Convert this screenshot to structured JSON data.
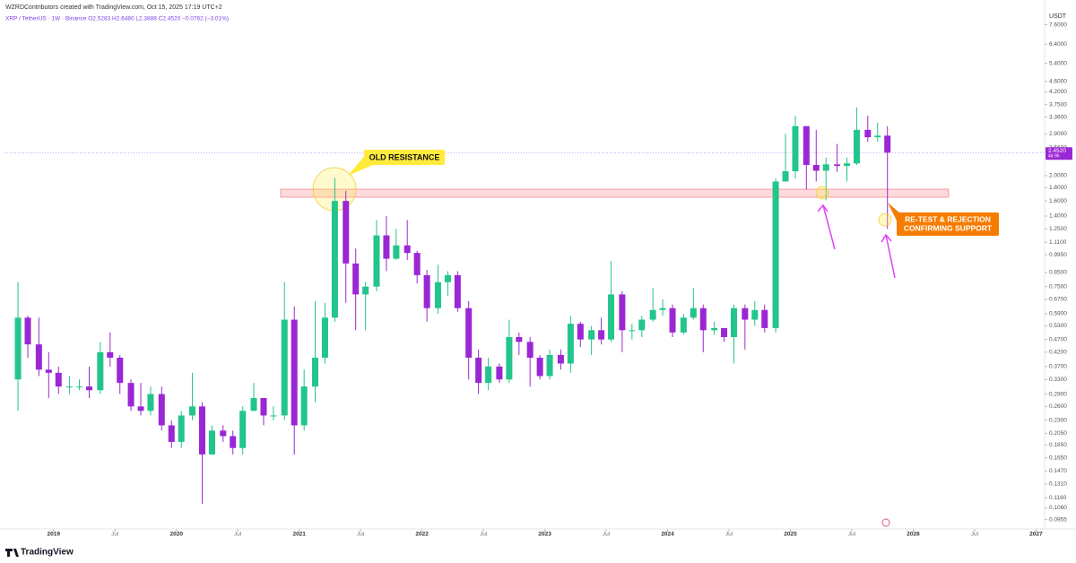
{
  "chart_data": {
    "type": "candlestick",
    "header": "WZRDContributors created with TradingView.com, Oct 15, 2025 17:19 UTC+2",
    "legend_text": "XRP / TetherUS · 1W · Binance  O2.5283  H2.6480  L2.3888  C2.4520  −0.0762 (−3.01%)",
    "currency": "USDT",
    "logo": "TradingView",
    "annotation_1": "OLD RESISTANCE",
    "annotation_2": [
      "RE-TEST & REJECTION",
      "CONFIRMING SUPPORT"
    ],
    "last_price": {
      "value": 2.452,
      "label": "2.4520"
    },
    "countdown": "4d 9h",
    "log_scale": true,
    "up_color": "#22c58b",
    "down_color": "#9b27d4",
    "xlim": [
      2018.6,
      2027.07
    ],
    "xticks": [
      {
        "value": 2019,
        "label": "2019"
      },
      {
        "value": 2019.5,
        "label": "Jul"
      },
      {
        "value": 2020,
        "label": "2020"
      },
      {
        "value": 2020.5,
        "label": "Jul"
      },
      {
        "value": 2021,
        "label": "2021"
      },
      {
        "value": 2021.5,
        "label": "Jul"
      },
      {
        "value": 2022,
        "label": "2022"
      },
      {
        "value": 2022.5,
        "label": "Jul"
      },
      {
        "value": 2023,
        "label": "2023"
      },
      {
        "value": 2023.5,
        "label": "Jul"
      },
      {
        "value": 2024,
        "label": "2024"
      },
      {
        "value": 2024.5,
        "label": "Jul"
      },
      {
        "value": 2025,
        "label": "2025"
      },
      {
        "value": 2025.5,
        "label": "Jul"
      },
      {
        "value": 2026,
        "label": "2026"
      },
      {
        "value": 2026.5,
        "label": "Jul"
      },
      {
        "value": 2027,
        "label": "2027"
      }
    ],
    "ylim": [
      0.088,
      8.2
    ],
    "yticks": [
      {
        "value": 7.6,
        "label": "7.6000"
      },
      {
        "value": 6.4,
        "label": "6.4000"
      },
      {
        "value": 5.4,
        "label": "5.4000"
      },
      {
        "value": 4.6,
        "label": "4.6000"
      },
      {
        "value": 4.2,
        "label": "4.2000"
      },
      {
        "value": 3.75,
        "label": "3.7500"
      },
      {
        "value": 3.36,
        "label": "3.3600"
      },
      {
        "value": 2.9,
        "label": "2.9000"
      },
      {
        "value": 2.56,
        "label": "2.5600"
      },
      {
        "value": 2,
        "label": "2.0000"
      },
      {
        "value": 1.8,
        "label": "1.8000"
      },
      {
        "value": 1.6,
        "label": "1.6000"
      },
      {
        "value": 1.4,
        "label": "1.4000"
      },
      {
        "value": 1.25,
        "label": "1.2500"
      },
      {
        "value": 1.11,
        "label": "1.1100"
      },
      {
        "value": 0.995,
        "label": "0.9950"
      },
      {
        "value": 0.85,
        "label": "0.8500"
      },
      {
        "value": 0.75,
        "label": "0.7500"
      },
      {
        "value": 0.67,
        "label": "0.6700"
      },
      {
        "value": 0.59,
        "label": "0.5900"
      },
      {
        "value": 0.53,
        "label": "0.5300"
      },
      {
        "value": 0.47,
        "label": "0.4700"
      },
      {
        "value": 0.42,
        "label": "0.4200"
      },
      {
        "value": 0.37,
        "label": "0.3700"
      },
      {
        "value": 0.33,
        "label": "0.3300"
      },
      {
        "value": 0.29,
        "label": "0.2900"
      },
      {
        "value": 0.26,
        "label": "0.2600"
      },
      {
        "value": 0.23,
        "label": "0.2300"
      },
      {
        "value": 0.205,
        "label": "0.2050"
      },
      {
        "value": 0.185,
        "label": "0.1850"
      },
      {
        "value": 0.165,
        "label": "0.1650"
      },
      {
        "value": 0.147,
        "label": "0.1470"
      },
      {
        "value": 0.131,
        "label": "0.1310"
      },
      {
        "value": 0.116,
        "label": "0.1160"
      },
      {
        "value": 0.106,
        "label": "0.1060"
      },
      {
        "value": 0.0955,
        "label": "0.0955"
      }
    ],
    "x": [
      2018.71,
      2018.79,
      2018.88,
      2018.96,
      2019.04,
      2019.13,
      2019.21,
      2019.29,
      2019.38,
      2019.46,
      2019.54,
      2019.63,
      2019.71,
      2019.79,
      2019.88,
      2019.96,
      2020.04,
      2020.13,
      2020.21,
      2020.29,
      2020.38,
      2020.46,
      2020.54,
      2020.63,
      2020.71,
      2020.79,
      2020.88,
      2020.96,
      2021.04,
      2021.13,
      2021.21,
      2021.29,
      2021.38,
      2021.46,
      2021.54,
      2021.63,
      2021.71,
      2021.79,
      2021.88,
      2021.96,
      2022.04,
      2022.13,
      2022.21,
      2022.29,
      2022.38,
      2022.46,
      2022.54,
      2022.63,
      2022.71,
      2022.79,
      2022.88,
      2022.96,
      2023.04,
      2023.13,
      2023.21,
      2023.29,
      2023.38,
      2023.46,
      2023.54,
      2023.63,
      2023.71,
      2023.79,
      2023.88,
      2023.96,
      2024.04,
      2024.13,
      2024.21,
      2024.29,
      2024.38,
      2024.46,
      2024.54,
      2024.63,
      2024.71,
      2024.79,
      2024.88,
      2024.96,
      2025.04,
      2025.13,
      2025.21,
      2025.29,
      2025.38,
      2025.46,
      2025.54,
      2025.63,
      2025.71,
      2025.79
    ],
    "open": [
      0.33,
      0.57,
      0.45,
      0.36,
      0.35,
      0.31,
      0.31,
      0.31,
      0.3,
      0.42,
      0.4,
      0.32,
      0.26,
      0.25,
      0.29,
      0.22,
      0.19,
      0.24,
      0.26,
      0.17,
      0.21,
      0.2,
      0.18,
      0.25,
      0.28,
      0.24,
      0.24,
      0.56,
      0.22,
      0.31,
      0.4,
      0.57,
      1.6,
      0.92,
      0.7,
      0.75,
      1.18,
      0.96,
      1.08,
      1.01,
      0.83,
      0.62,
      0.78,
      0.83,
      0.62,
      0.4,
      0.32,
      0.37,
      0.33,
      0.48,
      0.46,
      0.4,
      0.34,
      0.41,
      0.38,
      0.54,
      0.47,
      0.51,
      0.47,
      0.7,
      0.51,
      0.51,
      0.56,
      0.61,
      0.62,
      0.5,
      0.57,
      0.62,
      0.51,
      0.52,
      0.48,
      0.62,
      0.56,
      0.61,
      0.52,
      1.9,
      2.08,
      3.1,
      2.2,
      2.09,
      2.21,
      2.18,
      2.23,
      3.0,
      2.81,
      2.85
    ],
    "high": [
      0.78,
      0.58,
      0.57,
      0.42,
      0.37,
      0.34,
      0.33,
      0.37,
      0.46,
      0.5,
      0.41,
      0.33,
      0.32,
      0.31,
      0.31,
      0.23,
      0.25,
      0.35,
      0.27,
      0.22,
      0.22,
      0.21,
      0.26,
      0.32,
      0.28,
      0.26,
      0.78,
      0.63,
      0.36,
      0.66,
      0.65,
      1.96,
      1.75,
      1.05,
      0.78,
      1.35,
      1.4,
      1.25,
      1.35,
      1.03,
      0.87,
      0.91,
      0.86,
      0.86,
      0.66,
      0.43,
      0.4,
      0.38,
      0.56,
      0.5,
      0.48,
      0.41,
      0.43,
      0.43,
      0.58,
      0.55,
      0.53,
      0.57,
      0.94,
      0.72,
      0.54,
      0.58,
      0.74,
      0.67,
      0.64,
      0.59,
      0.74,
      0.64,
      0.55,
      0.52,
      0.64,
      0.64,
      0.66,
      0.64,
      1.95,
      2.9,
      3.4,
      3.1,
      3.0,
      2.35,
      2.65,
      2.35,
      3.66,
      3.4,
      3.2,
      3.1
    ],
    "low": [
      0.25,
      0.4,
      0.34,
      0.28,
      0.29,
      0.29,
      0.3,
      0.28,
      0.29,
      0.37,
      0.29,
      0.25,
      0.24,
      0.24,
      0.21,
      0.18,
      0.18,
      0.23,
      0.11,
      0.17,
      0.19,
      0.17,
      0.17,
      0.25,
      0.22,
      0.23,
      0.23,
      0.17,
      0.21,
      0.27,
      0.38,
      0.55,
      0.65,
      0.51,
      0.51,
      0.72,
      0.86,
      0.95,
      0.95,
      0.77,
      0.55,
      0.59,
      0.69,
      0.6,
      0.33,
      0.29,
      0.3,
      0.32,
      0.32,
      0.41,
      0.31,
      0.33,
      0.33,
      0.36,
      0.35,
      0.44,
      0.41,
      0.45,
      0.46,
      0.42,
      0.47,
      0.48,
      0.55,
      0.58,
      0.48,
      0.49,
      0.56,
      0.42,
      0.49,
      0.46,
      0.38,
      0.43,
      0.53,
      0.5,
      0.5,
      1.9,
      1.95,
      1.77,
      1.9,
      1.61,
      2.07,
      1.9,
      2.2,
      2.7,
      2.7,
      1.25
    ],
    "close": [
      0.57,
      0.45,
      0.36,
      0.35,
      0.31,
      0.31,
      0.31,
      0.3,
      0.42,
      0.4,
      0.32,
      0.26,
      0.25,
      0.29,
      0.22,
      0.19,
      0.24,
      0.26,
      0.17,
      0.21,
      0.2,
      0.18,
      0.25,
      0.28,
      0.24,
      0.24,
      0.56,
      0.22,
      0.31,
      0.4,
      0.57,
      1.6,
      0.92,
      0.7,
      0.75,
      1.18,
      0.96,
      1.08,
      1.01,
      0.83,
      0.62,
      0.78,
      0.83,
      0.62,
      0.4,
      0.32,
      0.37,
      0.33,
      0.48,
      0.46,
      0.4,
      0.34,
      0.41,
      0.38,
      0.54,
      0.47,
      0.51,
      0.47,
      0.7,
      0.51,
      0.51,
      0.56,
      0.61,
      0.62,
      0.5,
      0.57,
      0.62,
      0.51,
      0.52,
      0.48,
      0.62,
      0.56,
      0.61,
      0.52,
      1.9,
      2.08,
      3.1,
      2.2,
      2.09,
      2.21,
      2.18,
      2.23,
      3.0,
      2.81,
      2.85,
      2.452
    ]
  }
}
